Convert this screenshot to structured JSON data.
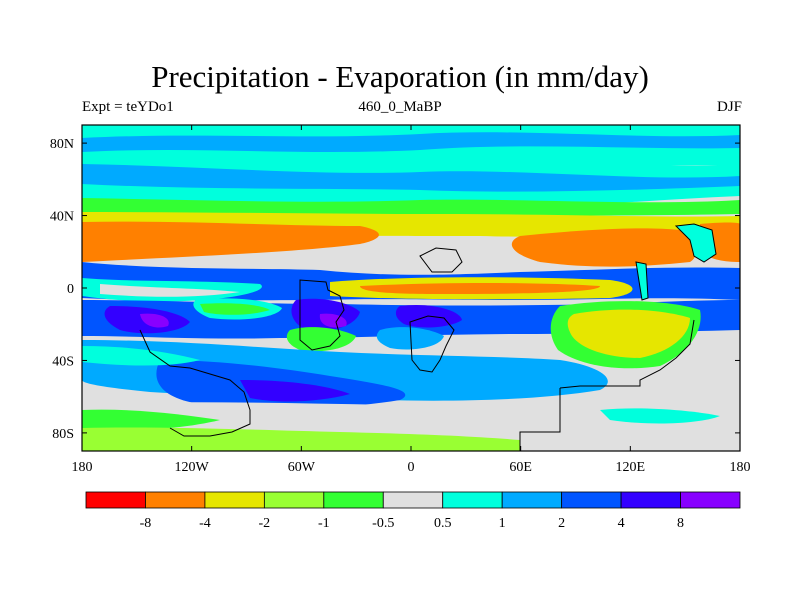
{
  "title": "Precipitation - Evaporation (in mm/day)",
  "left_label": "Expt = teYDo1",
  "center_label": "460_0_MaBP",
  "right_label": "DJF",
  "y_ticks": [
    {
      "label": "80N",
      "lat": 80
    },
    {
      "label": "40N",
      "lat": 40
    },
    {
      "label": "0",
      "lat": 0
    },
    {
      "label": "40S",
      "lat": -40
    },
    {
      "label": "80S",
      "lat": -80
    }
  ],
  "x_ticks": [
    {
      "label": "180",
      "lon": -180
    },
    {
      "label": "120W",
      "lon": -120
    },
    {
      "label": "60W",
      "lon": -60
    },
    {
      "label": "0",
      "lon": 0
    },
    {
      "label": "60E",
      "lon": 60
    },
    {
      "label": "120E",
      "lon": 120
    },
    {
      "label": "180",
      "lon": 180
    }
  ],
  "colorbar": {
    "colors": [
      "#ff0000",
      "#ff8000",
      "#e6e600",
      "#99ff33",
      "#33ff33",
      "#e0e0e0",
      "#00ffdd",
      "#00aaff",
      "#0055ff",
      "#3300ff",
      "#8800ff"
    ],
    "labels": [
      "-8",
      "-4",
      "-2",
      "-1",
      "-0.5",
      "0.5",
      "1",
      "2",
      "4",
      "8"
    ]
  },
  "palette": {
    "grey": "#e0e0e0",
    "cyan": "#00ffdd",
    "lightblue": "#00aaff",
    "blue": "#0055ff",
    "darkblue": "#3300ff",
    "purple": "#8800ff",
    "green": "#33ff33",
    "lightgreen": "#99ff33",
    "yellow": "#e6e600",
    "orange": "#ff8000"
  }
}
